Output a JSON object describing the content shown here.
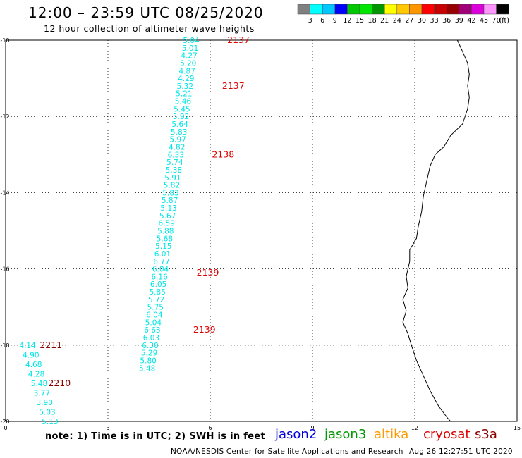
{
  "header": {
    "title": "12:00 – 23:59 UTC 08/25/2020",
    "subtitle": "12 hour collection of altimeter wave heights"
  },
  "colorbar": {
    "colors": [
      "#808080",
      "#00ffff",
      "#00c8ff",
      "#0000ff",
      "#00c800",
      "#00e600",
      "#009600",
      "#ffff00",
      "#ffc800",
      "#ff9600",
      "#ff0000",
      "#c80000",
      "#960000",
      "#a00078",
      "#dc00dc",
      "#ff96ff",
      "#000000"
    ],
    "labels": [
      "3",
      "6",
      "9",
      "12",
      "15",
      "18",
      "21",
      "24",
      "27",
      "30",
      "33",
      "36",
      "39",
      "42",
      "45",
      "70"
    ],
    "unit": "(ft)"
  },
  "axes": {
    "x_ticks": [
      "0",
      "3",
      "6",
      "9",
      "12",
      "15"
    ],
    "y_ticks": [
      "-10",
      "-12",
      "-14",
      "-16",
      "-18",
      "-20"
    ]
  },
  "tracks": [
    {
      "color": "#00e5e5",
      "values": [
        {
          "v": "5.04",
          "pos": [
            5.2,
            -10.0
          ]
        },
        {
          "v": "5.01",
          "pos": [
            5.17,
            -10.2
          ]
        },
        {
          "v": "4.27",
          "pos": [
            5.14,
            -10.4
          ]
        },
        {
          "v": "5.20",
          "pos": [
            5.11,
            -10.6
          ]
        },
        {
          "v": "4.87",
          "pos": [
            5.08,
            -10.8
          ]
        },
        {
          "v": "4.29",
          "pos": [
            5.05,
            -11.0
          ]
        },
        {
          "v": "5.32",
          "pos": [
            5.02,
            -11.2
          ]
        },
        {
          "v": "5.21",
          "pos": [
            4.99,
            -11.4
          ]
        },
        {
          "v": "5.46",
          "pos": [
            4.96,
            -11.6
          ]
        },
        {
          "v": "5.45",
          "pos": [
            4.93,
            -11.8
          ]
        },
        {
          "v": "5.92",
          "pos": [
            4.9,
            -12.0
          ]
        },
        {
          "v": "5.64",
          "pos": [
            4.87,
            -12.2
          ]
        },
        {
          "v": "5.83",
          "pos": [
            4.84,
            -12.4
          ]
        },
        {
          "v": "5.97",
          "pos": [
            4.81,
            -12.6
          ]
        },
        {
          "v": "4.82",
          "pos": [
            4.78,
            -12.8
          ]
        },
        {
          "v": "6.33",
          "pos": [
            4.75,
            -13.0
          ]
        },
        {
          "v": "5.74",
          "pos": [
            4.72,
            -13.2
          ]
        },
        {
          "v": "5.38",
          "pos": [
            4.69,
            -13.4
          ]
        },
        {
          "v": "5.91",
          "pos": [
            4.66,
            -13.6
          ]
        },
        {
          "v": "5.82",
          "pos": [
            4.63,
            -13.8
          ]
        },
        {
          "v": "5.83",
          "pos": [
            4.6,
            -14.0
          ]
        },
        {
          "v": "5.87",
          "pos": [
            4.57,
            -14.2
          ]
        },
        {
          "v": "5.13",
          "pos": [
            4.54,
            -14.4
          ]
        },
        {
          "v": "5.67",
          "pos": [
            4.51,
            -14.6
          ]
        },
        {
          "v": "6.59",
          "pos": [
            4.48,
            -14.8
          ]
        },
        {
          "v": "5.88",
          "pos": [
            4.45,
            -15.0
          ]
        },
        {
          "v": "5.68",
          "pos": [
            4.42,
            -15.2
          ]
        },
        {
          "v": "5.15",
          "pos": [
            4.39,
            -15.4
          ]
        },
        {
          "v": "6.01",
          "pos": [
            4.36,
            -15.6
          ]
        },
        {
          "v": "6.77",
          "pos": [
            4.33,
            -15.8
          ]
        },
        {
          "v": "6.04",
          "pos": [
            4.3,
            -16.0
          ]
        },
        {
          "v": "6.16",
          "pos": [
            4.27,
            -16.2
          ]
        },
        {
          "v": "6.05",
          "pos": [
            4.24,
            -16.4
          ]
        },
        {
          "v": "5.85",
          "pos": [
            4.21,
            -16.6
          ]
        },
        {
          "v": "5.72",
          "pos": [
            4.18,
            -16.8
          ]
        },
        {
          "v": "5.75",
          "pos": [
            4.15,
            -17.0
          ]
        },
        {
          "v": "6.04",
          "pos": [
            4.12,
            -17.2
          ]
        },
        {
          "v": "5.04",
          "pos": [
            4.09,
            -17.4
          ]
        },
        {
          "v": "6.63",
          "pos": [
            4.06,
            -17.6
          ]
        },
        {
          "v": "6.03",
          "pos": [
            4.03,
            -17.8
          ]
        },
        {
          "v": "6.30",
          "pos": [
            4.0,
            -18.0
          ]
        },
        {
          "v": "5.29",
          "pos": [
            3.97,
            -18.2
          ]
        },
        {
          "v": "5.80",
          "pos": [
            3.94,
            -18.4
          ]
        },
        {
          "v": "5.48",
          "pos": [
            3.91,
            -18.6
          ]
        }
      ]
    },
    {
      "color": "#00e5e5",
      "values": [
        {
          "v": "4.14",
          "pos": [
            0.4,
            -18.0
          ]
        },
        {
          "v": "4.90",
          "pos": [
            0.5,
            -18.25
          ]
        },
        {
          "v": "4.68",
          "pos": [
            0.58,
            -18.5
          ]
        },
        {
          "v": "4.28",
          "pos": [
            0.66,
            -18.75
          ]
        },
        {
          "v": "5.48",
          "pos": [
            0.74,
            -19.0
          ]
        },
        {
          "v": "3.77",
          "pos": [
            0.82,
            -19.25
          ]
        },
        {
          "v": "3.90",
          "pos": [
            0.9,
            -19.5
          ]
        },
        {
          "v": "5.03",
          "pos": [
            0.98,
            -19.75
          ]
        },
        {
          "v": "5.13",
          "pos": [
            1.06,
            -20.0
          ]
        }
      ]
    }
  ],
  "time_labels": [
    {
      "t": "2137",
      "color": "#dd0000",
      "pos": [
        6.5,
        -10.0
      ]
    },
    {
      "t": "2137",
      "color": "#dd0000",
      "pos": [
        6.35,
        -11.2
      ]
    },
    {
      "t": "2138",
      "color": "#dd0000",
      "pos": [
        6.05,
        -13.0
      ]
    },
    {
      "t": "2139",
      "color": "#dd0000",
      "pos": [
        5.6,
        -16.1
      ]
    },
    {
      "t": "2139",
      "color": "#dd0000",
      "pos": [
        5.5,
        -17.6
      ]
    },
    {
      "t": "2211",
      "color": "#8b0000",
      "pos": [
        1.0,
        -18.0
      ]
    },
    {
      "t": "2210",
      "color": "#8b0000",
      "pos": [
        1.25,
        -19.0
      ]
    }
  ],
  "coastline": [
    [
      13.25,
      -10.0
    ],
    [
      13.4,
      -10.3
    ],
    [
      13.55,
      -10.6
    ],
    [
      13.6,
      -10.9
    ],
    [
      13.55,
      -11.2
    ],
    [
      13.6,
      -11.5
    ],
    [
      13.55,
      -11.8
    ],
    [
      13.4,
      -12.2
    ],
    [
      13.05,
      -12.5
    ],
    [
      12.85,
      -12.8
    ],
    [
      12.6,
      -13.0
    ],
    [
      12.45,
      -13.3
    ],
    [
      12.35,
      -13.7
    ],
    [
      12.25,
      -14.1
    ],
    [
      12.2,
      -14.5
    ],
    [
      12.1,
      -14.9
    ],
    [
      12.05,
      -15.2
    ],
    [
      11.85,
      -15.5
    ],
    [
      11.85,
      -15.8
    ],
    [
      11.75,
      -16.2
    ],
    [
      11.8,
      -16.5
    ],
    [
      11.65,
      -16.8
    ],
    [
      11.75,
      -17.1
    ],
    [
      11.65,
      -17.4
    ],
    [
      11.8,
      -17.7
    ],
    [
      11.9,
      -18.0
    ],
    [
      12.05,
      -18.4
    ],
    [
      12.25,
      -18.8
    ],
    [
      12.45,
      -19.2
    ],
    [
      12.7,
      -19.6
    ],
    [
      12.95,
      -19.9
    ],
    [
      13.05,
      -20.0
    ]
  ],
  "legend": [
    {
      "label": "jason2",
      "color": "#0000dd"
    },
    {
      "label": "jason3",
      "color": "#009900"
    },
    {
      "label": "altika",
      "color": "#ff9900"
    },
    {
      "label": "cryosat",
      "color": "#dd0000"
    },
    {
      "label": "s3a",
      "color": "#8b0000"
    }
  ],
  "footer": {
    "note": "note:  1) Time is in UTC;  2) SWH is in feet",
    "credit": "NOAA/NESDIS Center for Satellite Applications and Research",
    "timestamp": "Aug 26 12:27:51 UTC 2020"
  }
}
